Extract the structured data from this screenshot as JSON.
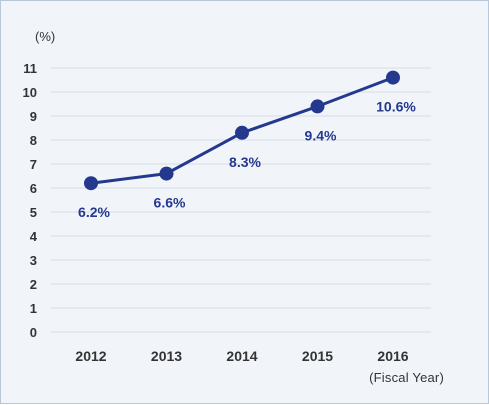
{
  "chart_data": {
    "type": "line",
    "unit_label": "(%)",
    "xlabel": "(Fiscal Year)",
    "ylabel": "",
    "title": "",
    "categories": [
      "2012",
      "2013",
      "2014",
      "2015",
      "2016"
    ],
    "series": [
      {
        "values": [
          6.2,
          6.6,
          8.3,
          9.4,
          10.6
        ],
        "color": "#24398e"
      }
    ],
    "data_labels": [
      "6.2%",
      "6.6%",
      "8.3%",
      "9.4%",
      "10.6%"
    ],
    "ylim": [
      0,
      11
    ],
    "yticks": [
      0,
      1,
      2,
      3,
      4,
      5,
      6,
      7,
      8,
      9,
      10,
      11
    ],
    "grid": true,
    "gridline_color": "#d6dde6",
    "background_color": "#f1f5fa",
    "legend": "none"
  }
}
